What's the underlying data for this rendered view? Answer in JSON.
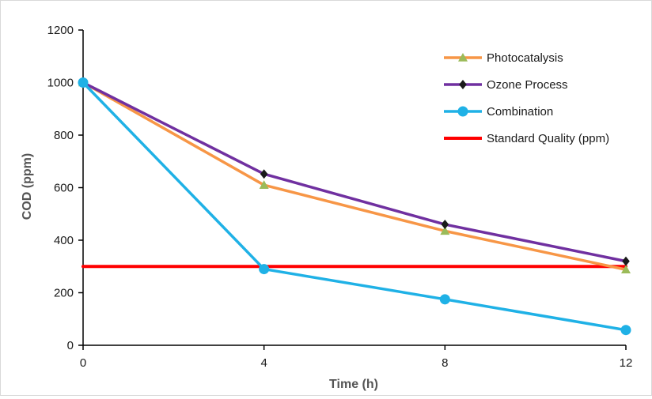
{
  "chart_data": {
    "type": "line",
    "title": "",
    "xlabel": "Time (h)",
    "ylabel": "COD (ppm)",
    "x": [
      0,
      4,
      8,
      12
    ],
    "xticks": [
      "0",
      "4",
      "8",
      "12"
    ],
    "xlim": [
      0,
      12
    ],
    "yticks": [
      "0",
      "200",
      "400",
      "600",
      "800",
      "1000",
      "1200"
    ],
    "ylim": [
      0,
      1200
    ],
    "grid": false,
    "legend_position": "top-right",
    "series": [
      {
        "name": "Photocatalysis",
        "values": [
          1000,
          610,
          435,
          288
        ],
        "color": "#f79646",
        "marker": "triangle",
        "marker_color": "#9bbb59"
      },
      {
        "name": "Ozone Process",
        "values": [
          1000,
          652,
          460,
          320
        ],
        "color": "#7030a0",
        "marker": "diamond",
        "marker_color": "#1a1a1a"
      },
      {
        "name": "Combination",
        "values": [
          1000,
          290,
          175,
          58
        ],
        "color": "#1fb1e6",
        "marker": "circle",
        "marker_color": "#1fb1e6"
      },
      {
        "name": "Standard Quality (ppm)",
        "values": [
          300,
          300,
          300,
          300
        ],
        "color": "#ff0000",
        "marker": "none",
        "marker_color": "#ff0000"
      }
    ]
  }
}
